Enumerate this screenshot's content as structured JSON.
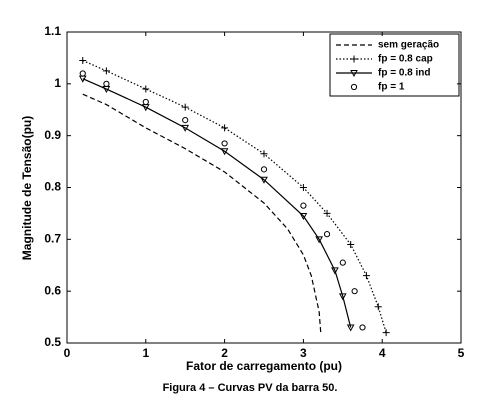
{
  "chart_data": {
    "type": "line",
    "xlabel": "Fator de carregamento (pu)",
    "ylabel": "Magnitude de Tensão(pu)",
    "caption": "Figura 4 – Curvas PV da barra 50.",
    "xlim": [
      0,
      5
    ],
    "xticks": [
      0,
      1,
      2,
      3,
      4,
      5
    ],
    "ylim": [
      0.5,
      1.1
    ],
    "yticks": [
      0.5,
      0.6,
      0.7,
      0.8,
      0.9,
      1,
      1.1
    ],
    "legend": "upper right",
    "series": [
      {
        "name": "sem geração",
        "color": "#000000",
        "line_style": "dashed",
        "marker": "none",
        "x": [
          0.2,
          0.5,
          1,
          1.5,
          2,
          2.5,
          2.8,
          3.0,
          3.1,
          3.2,
          3.22
        ],
        "values": [
          0.98,
          0.96,
          0.915,
          0.875,
          0.83,
          0.77,
          0.72,
          0.67,
          0.63,
          0.56,
          0.52
        ]
      },
      {
        "name": "fp = 0.8 cap",
        "color": "#000000",
        "line_style": "dotted",
        "marker": "plus",
        "x": [
          0.2,
          0.5,
          1,
          1.5,
          2,
          2.5,
          3,
          3.3,
          3.6,
          3.8,
          3.95,
          4.05
        ],
        "values": [
          1.045,
          1.025,
          0.99,
          0.955,
          0.915,
          0.865,
          0.8,
          0.75,
          0.69,
          0.63,
          0.57,
          0.52
        ]
      },
      {
        "name": "fp = 0.8 ind",
        "color": "#000000",
        "line_style": "solid",
        "marker": "triangle-down",
        "x": [
          0.2,
          0.5,
          1,
          1.5,
          2,
          2.5,
          3,
          3.2,
          3.4,
          3.5,
          3.6
        ],
        "values": [
          1.01,
          0.99,
          0.955,
          0.915,
          0.87,
          0.815,
          0.745,
          0.7,
          0.64,
          0.59,
          0.53
        ]
      },
      {
        "name": "fp = 1",
        "color": "#000000",
        "line_style": "none",
        "marker": "circle",
        "x": [
          0.2,
          0.5,
          1,
          1.5,
          2,
          2.5,
          3,
          3.3,
          3.5,
          3.65,
          3.75
        ],
        "values": [
          1.02,
          1.0,
          0.965,
          0.93,
          0.885,
          0.835,
          0.765,
          0.71,
          0.655,
          0.6,
          0.53
        ]
      }
    ]
  }
}
